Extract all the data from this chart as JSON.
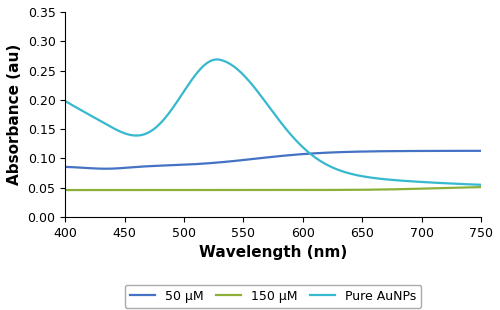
{
  "xlim": [
    400,
    750
  ],
  "ylim": [
    0.0,
    0.35
  ],
  "xlabel": "Wavelength (nm)",
  "ylabel": "Absorbance (au)",
  "xlabel_fontsize": 11,
  "ylabel_fontsize": 11,
  "xticks": [
    400,
    450,
    500,
    550,
    600,
    650,
    700,
    750
  ],
  "yticks": [
    0.0,
    0.05,
    0.1,
    0.15,
    0.2,
    0.25,
    0.3,
    0.35
  ],
  "color_50uM": "#4472C4",
  "color_150uM": "#8DB03B",
  "color_AuNPs": "#36B8CE",
  "legend_labels": [
    "50 μM",
    "150 μM",
    "Pure AuNPs"
  ],
  "legend_fontsize": 9,
  "tick_fontsize": 9,
  "linewidth": 1.6,
  "background_color": "#ffffff"
}
